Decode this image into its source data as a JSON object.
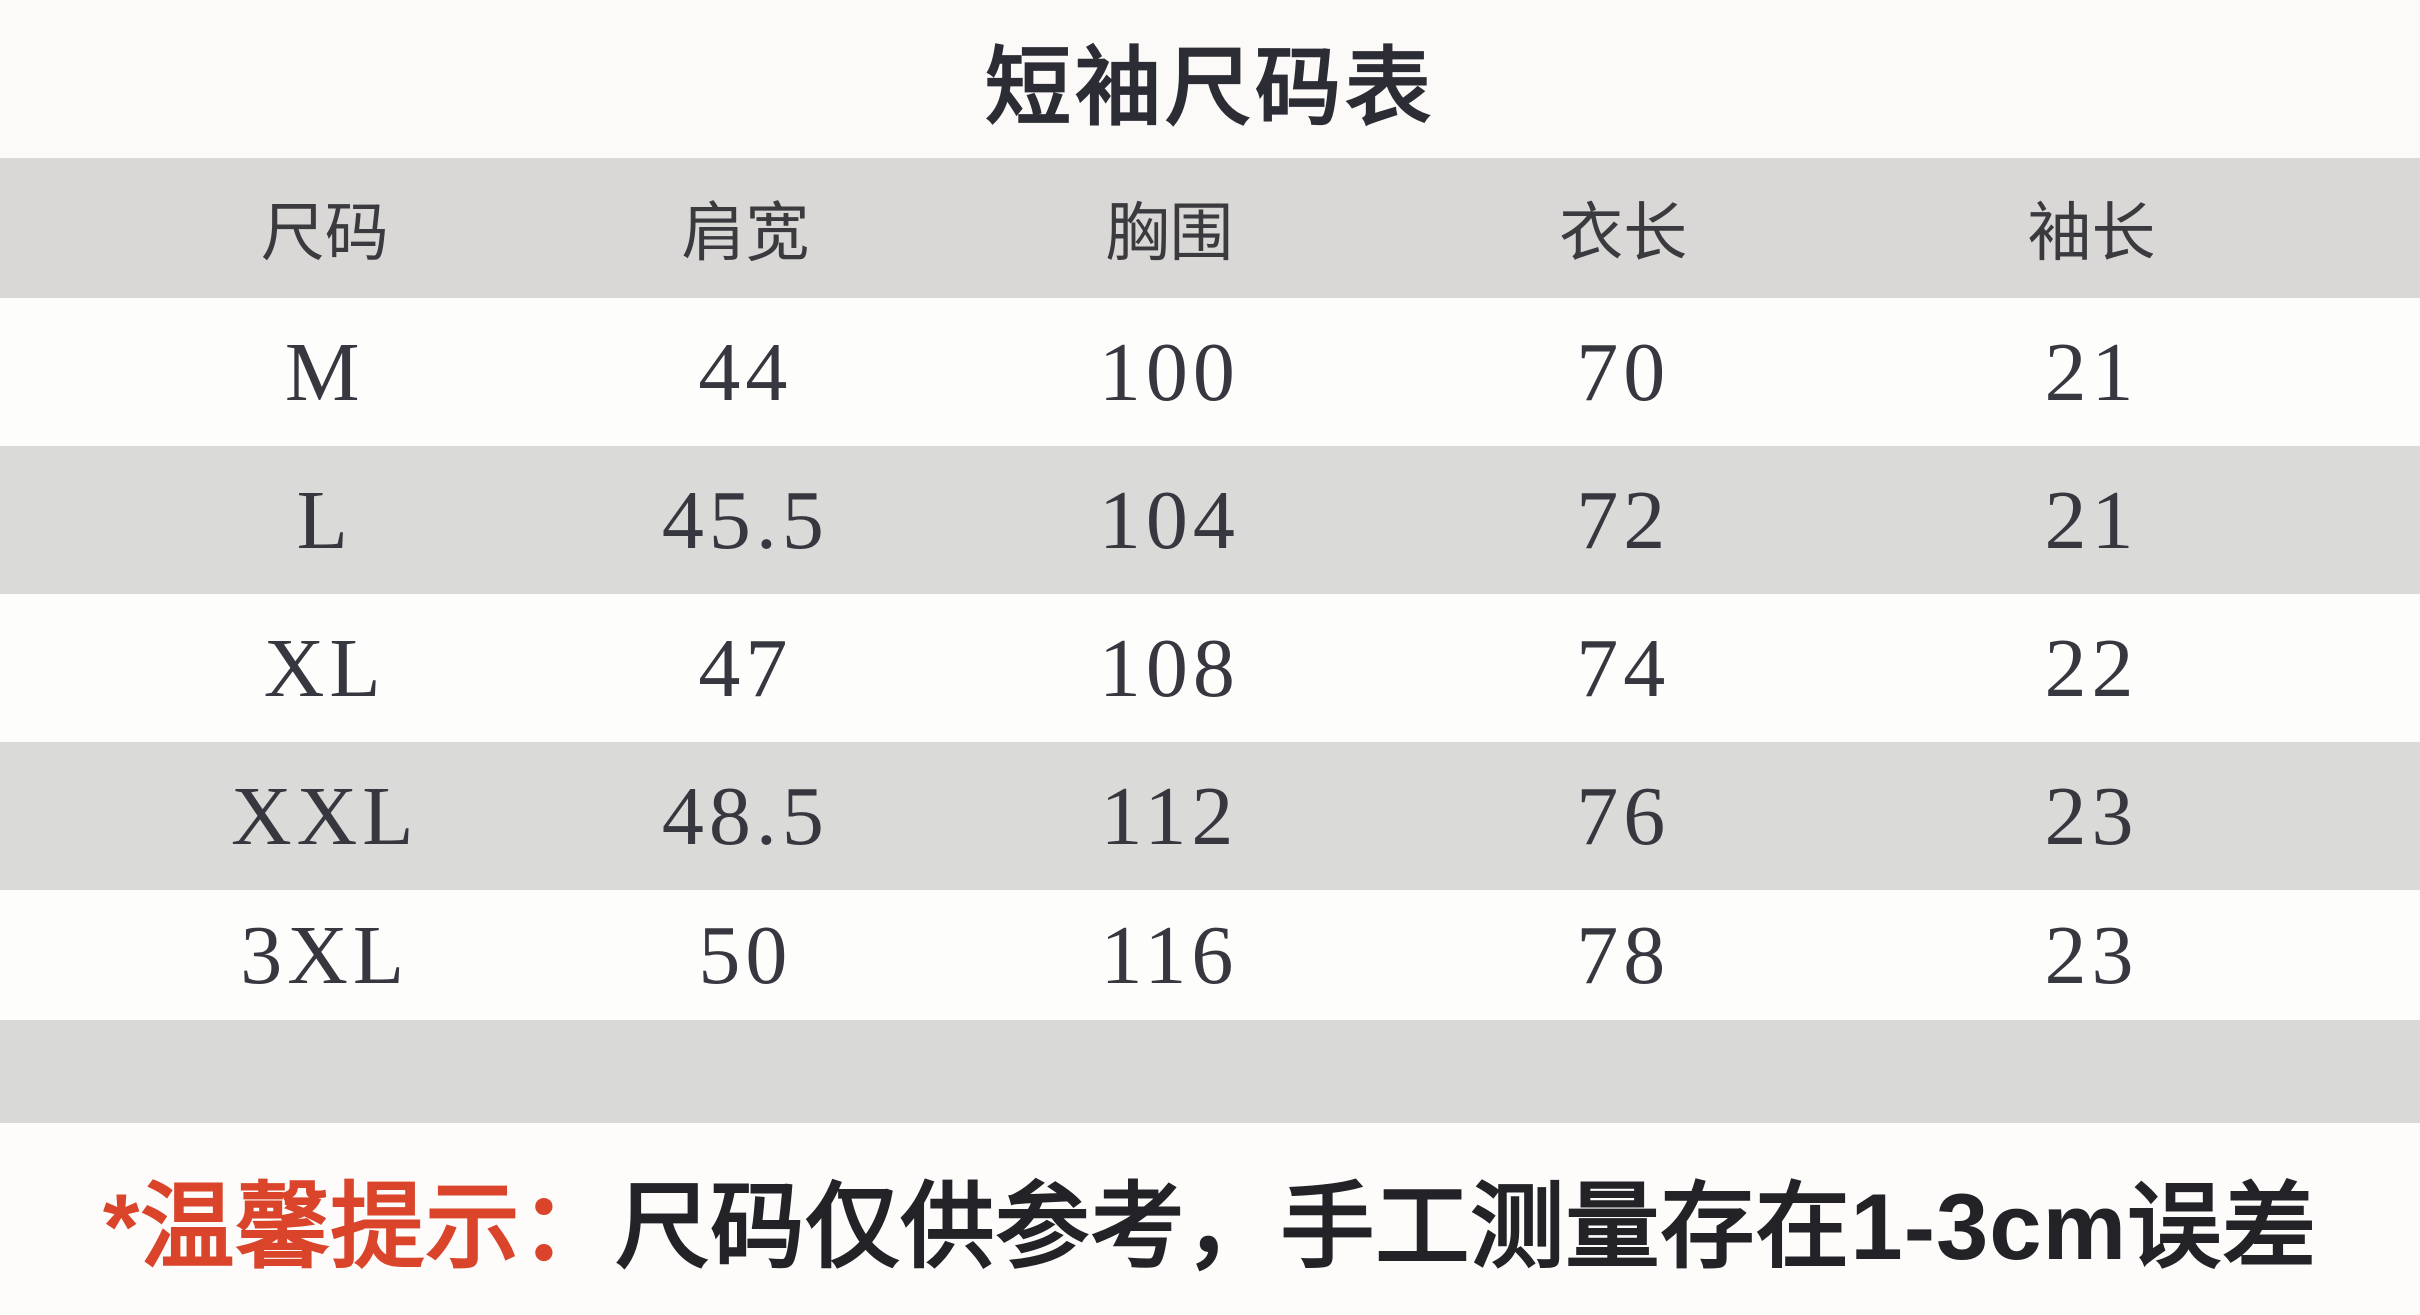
{
  "title": "短袖尺码表",
  "table": {
    "headers": [
      "尺码",
      "肩宽",
      "胸围",
      "衣长",
      "袖长"
    ],
    "rows": [
      [
        "M",
        "44",
        "100",
        "70",
        "21"
      ],
      [
        "L",
        "45.5",
        "104",
        "72",
        "21"
      ],
      [
        "XL",
        "47",
        "108",
        "74",
        "22"
      ],
      [
        "XXL",
        "48.5",
        "112",
        "76",
        "23"
      ],
      [
        "3XL",
        "50",
        "116",
        "78",
        "23"
      ]
    ]
  },
  "footer": {
    "prefix": "*温馨提示：",
    "text": "尺码仅供参考，手工测量存在1-3cm误差"
  },
  "colors": {
    "accent_red": "#d9442b",
    "header_gray": "#d9d8d6",
    "row_gray": "#dadad8",
    "row_white": "#fdfdfc",
    "text_dark": "#373740"
  }
}
